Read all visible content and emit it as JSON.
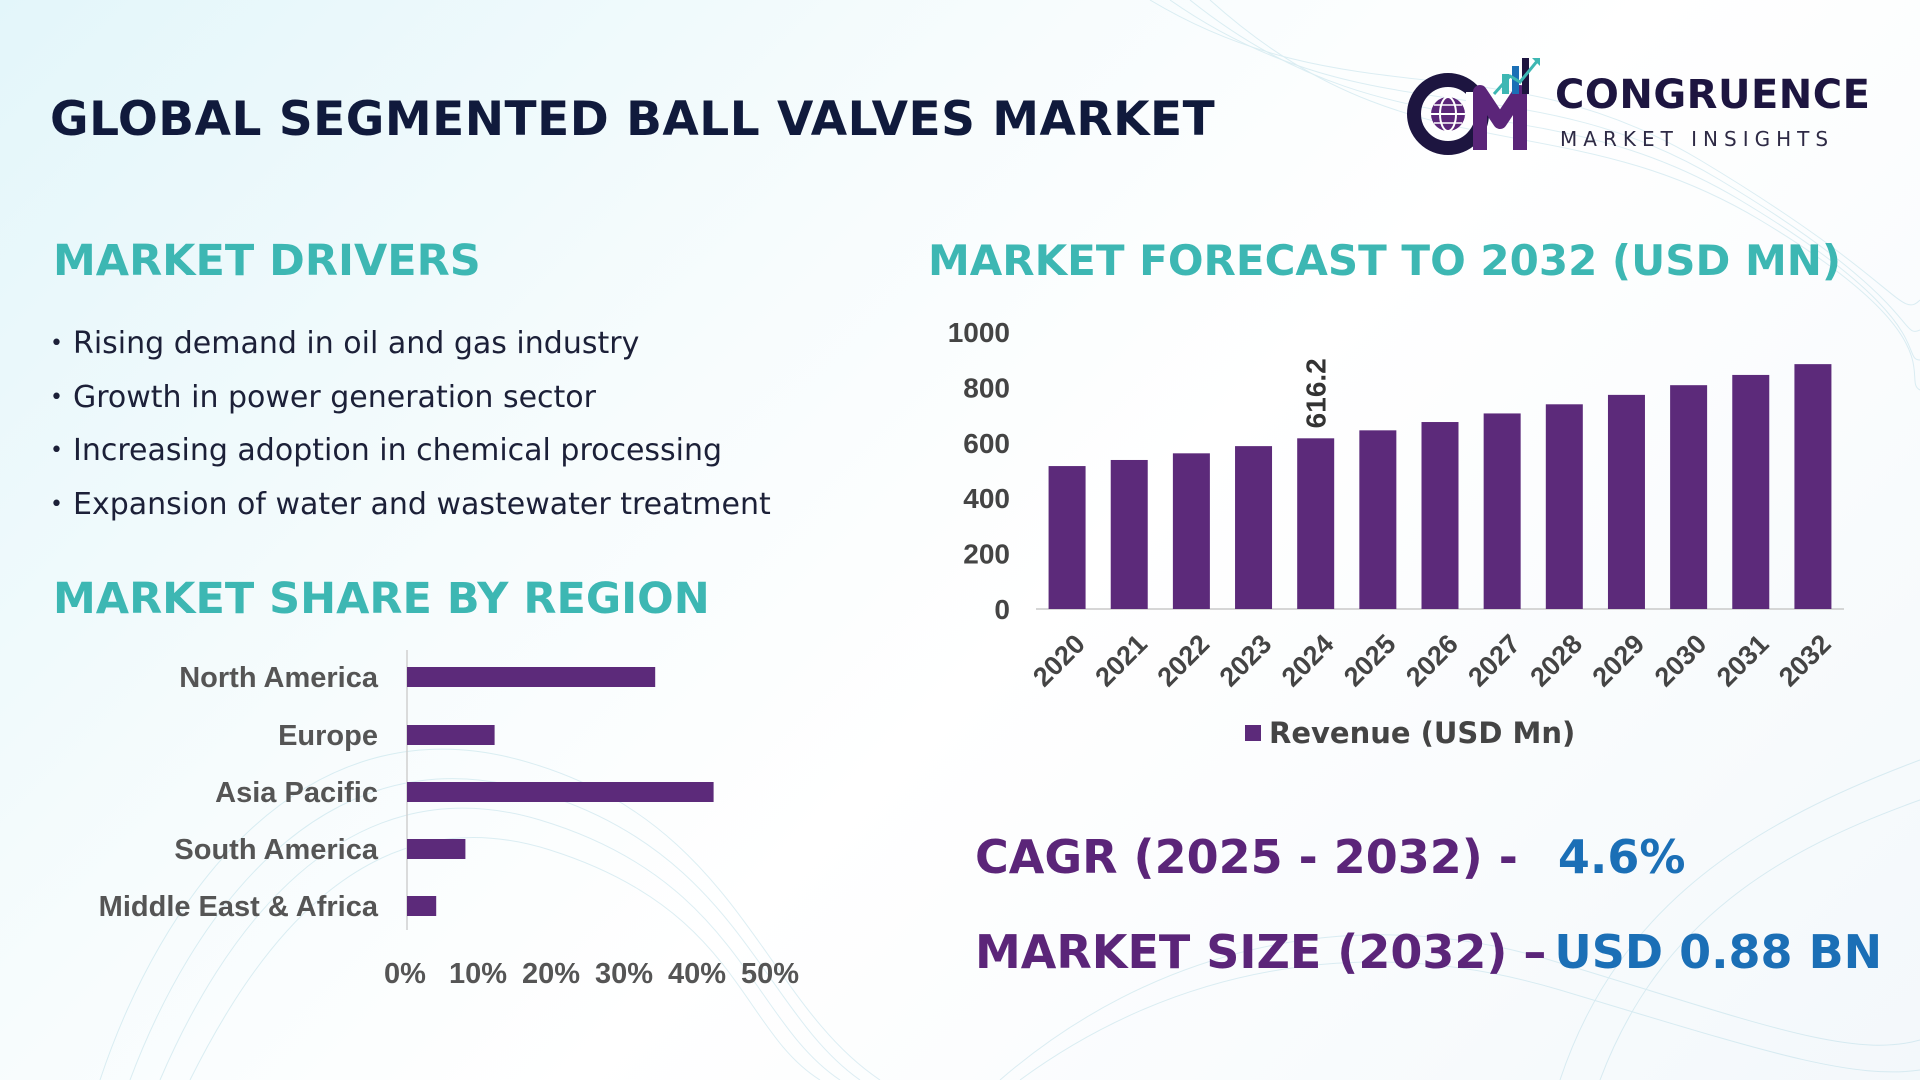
{
  "header": {
    "title": "GLOBAL SEGMENTED BALL VALVES MARKET"
  },
  "logo": {
    "name": "CONGRUENCE",
    "tagline": "MARKET INSIGHTS",
    "monogram": "CM"
  },
  "drivers": {
    "title": "MARKET DRIVERS",
    "items": [
      "Rising demand in oil and gas industry",
      "Growth in power generation sector",
      "Increasing adoption in chemical processing",
      "Expansion of water and wastewater treatment"
    ]
  },
  "region": {
    "title": "MARKET SHARE BY REGION"
  },
  "forecast": {
    "title": "MARKET FORECAST TO 2032 (USD MN)"
  },
  "kpis": {
    "cagr_label": "CAGR (2025 - 2032) -",
    "cagr_value": "4.6%",
    "size_label": "MARKET SIZE (2032) –",
    "size_value": "USD 0.88 BN"
  },
  "colors": {
    "bar": "#5c2a7a",
    "accent_teal": "#3db7b3",
    "title_navy": "#101a3c",
    "kpi_purple": "#5b2579",
    "kpi_blue": "#1b6fb6"
  },
  "chart_data": [
    {
      "type": "bar",
      "orientation": "vertical",
      "categories": [
        "2020",
        "2021",
        "2022",
        "2023",
        "2024",
        "2025",
        "2026",
        "2027",
        "2028",
        "2029",
        "2030",
        "2031",
        "2032"
      ],
      "series": [
        {
          "name": "Revenue (USD Mn)",
          "values": [
            516,
            538,
            562,
            588,
            616.2,
            645,
            675,
            706,
            739,
            773,
            808,
            845,
            884
          ]
        }
      ],
      "data_labels": [
        {
          "category": "2024",
          "text": "616.2"
        }
      ],
      "yticks": [
        "0",
        "200",
        "400",
        "600",
        "800",
        "1000"
      ],
      "ylim": [
        0,
        1000
      ],
      "legend": "bottom",
      "grid": false
    },
    {
      "type": "bar",
      "orientation": "horizontal",
      "categories": [
        "North America",
        "Europe",
        "Asia Pacific",
        "South America",
        "Middle East & Africa"
      ],
      "values": [
        34,
        12,
        42,
        8,
        4
      ],
      "xticks": [
        "0%",
        "10%",
        "20%",
        "30%",
        "40%",
        "50%"
      ],
      "xlim": [
        0,
        50
      ],
      "grid": false
    }
  ]
}
